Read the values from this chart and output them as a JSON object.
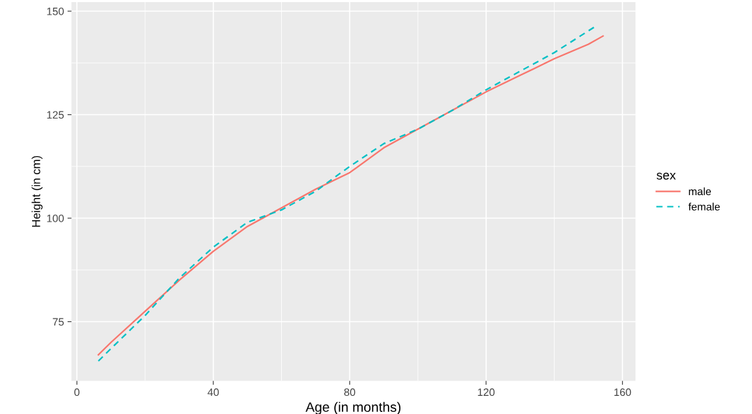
{
  "chart_data": {
    "type": "line",
    "xlabel": "Age (in months)",
    "ylabel": "Height (in cm)",
    "legend_title": "sex",
    "legend": "right",
    "grid": true,
    "xlim": [
      -1.6,
      163.8
    ],
    "ylim": [
      60.7,
      152.2
    ],
    "xticks": [
      0,
      40,
      80,
      120,
      160
    ],
    "yticks": [
      75,
      100,
      125,
      150
    ],
    "series": [
      {
        "name": "male",
        "color": "#f8766d",
        "line_style": "solid",
        "x": [
          6.3,
          10,
          20,
          30,
          40,
          50,
          60,
          70,
          80,
          90,
          100,
          110,
          120,
          130,
          140,
          150,
          154.3
        ],
        "values": [
          67,
          70,
          77.5,
          85,
          92,
          98,
          102.5,
          107,
          111,
          117,
          121.5,
          126,
          130.5,
          134.5,
          138.5,
          142,
          144
        ]
      },
      {
        "name": "female",
        "color": "#00bfc4",
        "line_style": "dashed",
        "x": [
          6.3,
          10,
          20,
          30,
          40,
          50,
          60,
          70,
          80,
          90,
          100,
          110,
          120,
          130,
          140,
          152.4
        ],
        "values": [
          65.5,
          68.5,
          76.5,
          85.5,
          93,
          99,
          102,
          106.5,
          112.5,
          118,
          121.5,
          126,
          131,
          135.5,
          140,
          146.5
        ]
      }
    ]
  }
}
